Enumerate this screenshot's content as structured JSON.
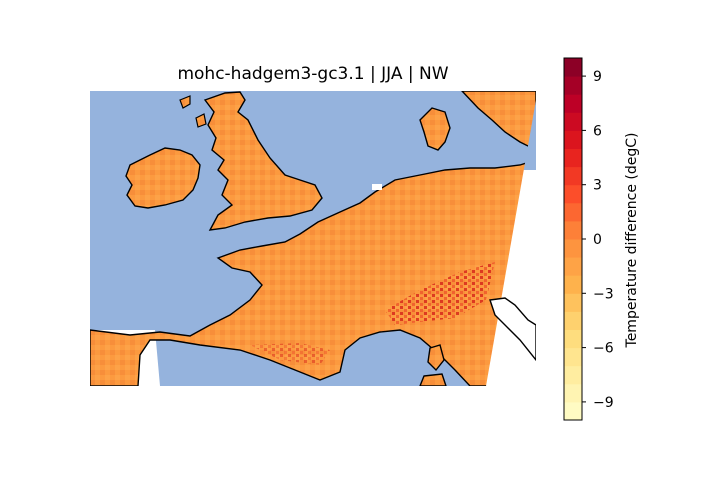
{
  "title": "mohc-hadgem3-gc3.1 | JJA | NW",
  "colorbar": {
    "label": "Temperature difference (degC)",
    "ticks": [
      {
        "value": 9,
        "label": "9"
      },
      {
        "value": 6,
        "label": "6"
      },
      {
        "value": 3,
        "label": "3"
      },
      {
        "value": 0,
        "label": "0"
      },
      {
        "value": -3,
        "label": "−3"
      },
      {
        "value": -6,
        "label": "−6"
      },
      {
        "value": -9,
        "label": "−9"
      }
    ],
    "range": [
      -10,
      10
    ],
    "colormap": "YlOrRd",
    "colors": [
      "#ffffcc",
      "#ffeda0",
      "#fed976",
      "#feb24c",
      "#fd8d3c",
      "#fc4e2a",
      "#e31a1c",
      "#bd0026",
      "#800026"
    ]
  },
  "map": {
    "ocean_color": "#95b3dd",
    "field_color": "#fb9a3e",
    "hot_color": "#e3301e",
    "no_data_color": "#ffffff"
  }
}
